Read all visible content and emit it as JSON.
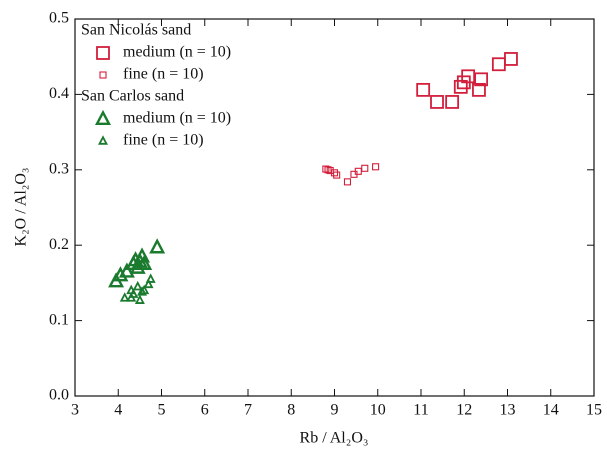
{
  "chart_data": {
    "type": "scatter",
    "xlabel": "Rb / Al₂O₃",
    "ylabel": "K₂O / Al₂O₃",
    "xlim": [
      3,
      15
    ],
    "xticks": [
      3,
      4,
      5,
      6,
      7,
      8,
      9,
      10,
      11,
      12,
      13,
      14,
      15
    ],
    "ylim": [
      0,
      0.5
    ],
    "yticks": [
      {
        "value": 0,
        "label": "0.0"
      },
      0.1,
      0.2,
      0.3,
      0.4,
      0.5
    ],
    "legend": "upper left",
    "series": [
      {
        "group": "San Nicolás sand",
        "name": "medium (n = 10)",
        "color": "#d21f3c",
        "marker": "square",
        "size": 12,
        "x": [
          11.05,
          11.37,
          11.72,
          11.92,
          11.99,
          12.09,
          12.34,
          12.39,
          12.8,
          13.08
        ],
        "values": [
          0.406,
          0.39,
          0.39,
          0.41,
          0.416,
          0.424,
          0.406,
          0.42,
          0.44,
          0.447
        ]
      },
      {
        "group": "San Nicolás sand",
        "name": "fine (n = 10)",
        "color": "#d21f3c",
        "marker": "square",
        "size": 6,
        "x": [
          8.8,
          8.85,
          8.9,
          9.0,
          9.05,
          9.3,
          9.45,
          9.55,
          9.7,
          9.95
        ],
        "values": [
          0.301,
          0.3,
          0.299,
          0.296,
          0.293,
          0.284,
          0.294,
          0.298,
          0.302,
          0.304
        ]
      },
      {
        "group": "San Carlos sand",
        "name": "medium (n = 10)",
        "color": "#1a7a2e",
        "marker": "triangle",
        "size": 12,
        "x": [
          3.95,
          4.05,
          4.2,
          4.35,
          4.4,
          4.45,
          4.5,
          4.55,
          4.6,
          4.9
        ],
        "values": [
          0.152,
          0.16,
          0.165,
          0.175,
          0.18,
          0.17,
          0.178,
          0.185,
          0.175,
          0.197
        ]
      },
      {
        "group": "San Carlos sand",
        "name": "fine (n = 10)",
        "color": "#1a7a2e",
        "marker": "triangle",
        "size": 7,
        "x": [
          4.15,
          4.3,
          4.3,
          4.35,
          4.45,
          4.5,
          4.55,
          4.6,
          4.7,
          4.75
        ],
        "values": [
          0.13,
          0.14,
          0.13,
          0.135,
          0.145,
          0.127,
          0.138,
          0.14,
          0.148,
          0.155
        ]
      }
    ]
  }
}
